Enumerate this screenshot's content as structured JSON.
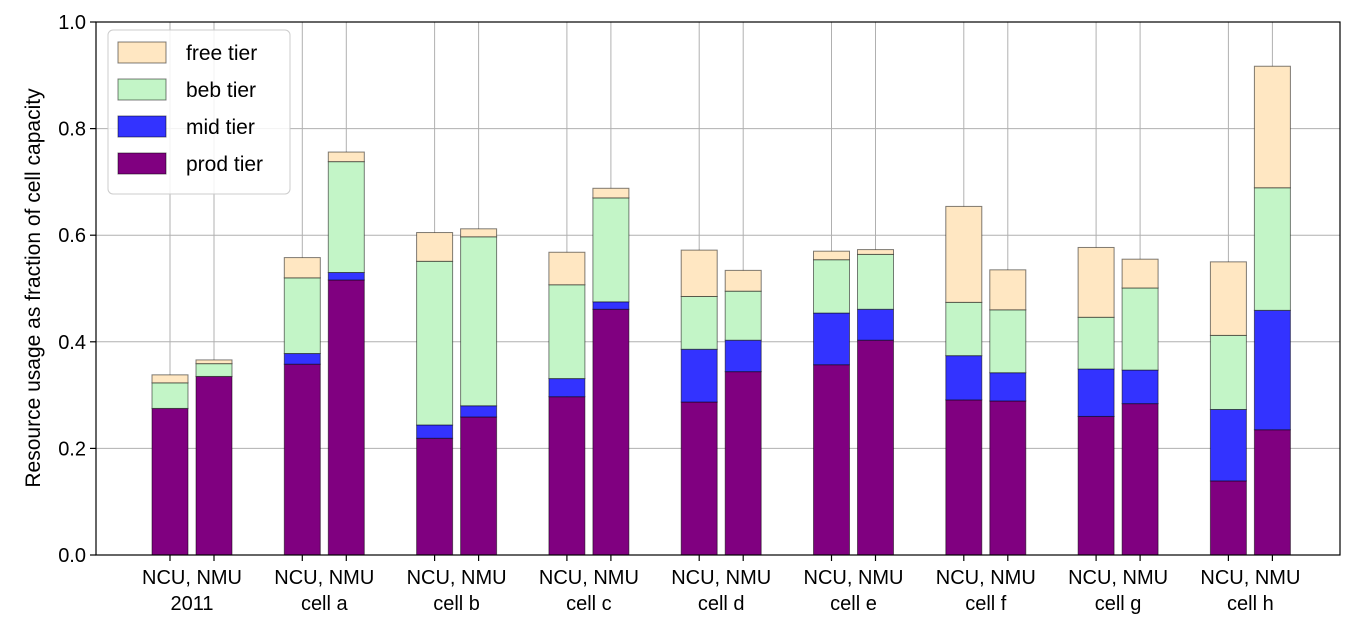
{
  "chart_data": {
    "type": "bar",
    "stacked": true,
    "title": "",
    "xlabel": "",
    "ylabel": "Resource usage as fraction of cell capacity",
    "ylim": [
      0,
      1.0
    ],
    "yticks": [
      "0.0",
      "0.2",
      "0.4",
      "0.6",
      "0.8",
      "1.0"
    ],
    "grid": true,
    "legend_position": "top-left",
    "groups": [
      {
        "label_top": "NCU, NMU",
        "label_bottom": "2011"
      },
      {
        "label_top": "NCU, NMU",
        "label_bottom": "cell a"
      },
      {
        "label_top": "NCU, NMU",
        "label_bottom": "cell b"
      },
      {
        "label_top": "NCU, NMU",
        "label_bottom": "cell c"
      },
      {
        "label_top": "NCU, NMU",
        "label_bottom": "cell d"
      },
      {
        "label_top": "NCU, NMU",
        "label_bottom": "cell e"
      },
      {
        "label_top": "NCU, NMU",
        "label_bottom": "cell f"
      },
      {
        "label_top": "NCU, NMU",
        "label_bottom": "cell g"
      },
      {
        "label_top": "NCU, NMU",
        "label_bottom": "cell h"
      }
    ],
    "bars_per_group": [
      "NCU",
      "NMU"
    ],
    "series": [
      {
        "name": "prod tier",
        "color": "#800080",
        "values": [
          [
            0.275,
            0.335
          ],
          [
            0.358,
            0.516
          ],
          [
            0.219,
            0.259
          ],
          [
            0.297,
            0.461
          ],
          [
            0.287,
            0.344
          ],
          [
            0.357,
            0.403
          ],
          [
            0.291,
            0.289
          ],
          [
            0.26,
            0.284
          ],
          [
            0.139,
            0.235
          ]
        ]
      },
      {
        "name": "mid tier",
        "color": "#3333ff",
        "values": [
          [
            0.0,
            0.0
          ],
          [
            0.02,
            0.014
          ],
          [
            0.025,
            0.021
          ],
          [
            0.034,
            0.014
          ],
          [
            0.099,
            0.059
          ],
          [
            0.097,
            0.058
          ],
          [
            0.083,
            0.053
          ],
          [
            0.089,
            0.063
          ],
          [
            0.134,
            0.224
          ]
        ]
      },
      {
        "name": "beb tier",
        "color": "#c3f5c7",
        "values": [
          [
            0.048,
            0.024
          ],
          [
            0.142,
            0.208
          ],
          [
            0.307,
            0.317
          ],
          [
            0.176,
            0.195
          ],
          [
            0.099,
            0.092
          ],
          [
            0.1,
            0.103
          ],
          [
            0.1,
            0.118
          ],
          [
            0.097,
            0.154
          ],
          [
            0.139,
            0.23
          ]
        ]
      },
      {
        "name": "free tier",
        "color": "#ffe7c2",
        "values": [
          [
            0.015,
            0.007
          ],
          [
            0.038,
            0.018
          ],
          [
            0.054,
            0.015
          ],
          [
            0.061,
            0.018
          ],
          [
            0.087,
            0.039
          ],
          [
            0.016,
            0.009
          ],
          [
            0.18,
            0.075
          ],
          [
            0.131,
            0.054
          ],
          [
            0.138,
            0.228
          ]
        ]
      }
    ],
    "legend_order": [
      "free tier",
      "beb tier",
      "mid tier",
      "prod tier"
    ]
  }
}
